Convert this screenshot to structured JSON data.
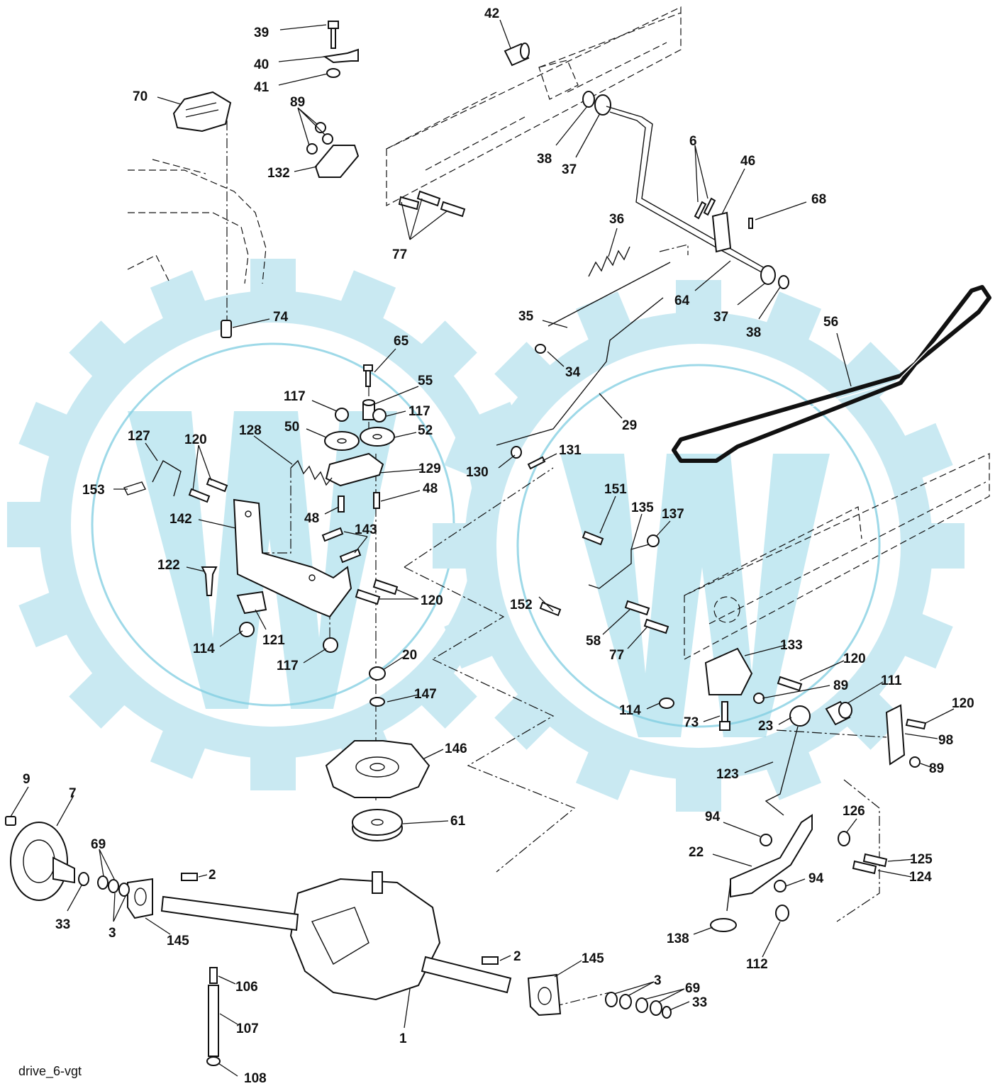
{
  "figure": {
    "caption": "drive_6-vgt"
  },
  "callouts": [
    {
      "id": "c39",
      "text": "39"
    },
    {
      "id": "c40",
      "text": "40"
    },
    {
      "id": "c41",
      "text": "41"
    },
    {
      "id": "c42",
      "text": "42"
    },
    {
      "id": "c70",
      "text": "70"
    },
    {
      "id": "c89a",
      "text": "89"
    },
    {
      "id": "c132",
      "text": "132"
    },
    {
      "id": "c77a",
      "text": "77"
    },
    {
      "id": "c38a",
      "text": "38"
    },
    {
      "id": "c37a",
      "text": "37"
    },
    {
      "id": "c6",
      "text": "6"
    },
    {
      "id": "c46",
      "text": "46"
    },
    {
      "id": "c68",
      "text": "68"
    },
    {
      "id": "c36",
      "text": "36"
    },
    {
      "id": "c64",
      "text": "64"
    },
    {
      "id": "c37b",
      "text": "37"
    },
    {
      "id": "c38b",
      "text": "38"
    },
    {
      "id": "c74",
      "text": "74"
    },
    {
      "id": "c35",
      "text": "35"
    },
    {
      "id": "c56",
      "text": "56"
    },
    {
      "id": "c65",
      "text": "65"
    },
    {
      "id": "c34",
      "text": "34"
    },
    {
      "id": "c55",
      "text": "55"
    },
    {
      "id": "c117a",
      "text": "117"
    },
    {
      "id": "c117b",
      "text": "117"
    },
    {
      "id": "c50",
      "text": "50"
    },
    {
      "id": "c52",
      "text": "52"
    },
    {
      "id": "c29",
      "text": "29"
    },
    {
      "id": "c127",
      "text": "127"
    },
    {
      "id": "c120a",
      "text": "120"
    },
    {
      "id": "c128",
      "text": "128"
    },
    {
      "id": "c129",
      "text": "129"
    },
    {
      "id": "c131",
      "text": "131"
    },
    {
      "id": "c130",
      "text": "130"
    },
    {
      "id": "c153",
      "text": "153"
    },
    {
      "id": "c48a",
      "text": "48"
    },
    {
      "id": "c48b",
      "text": "48"
    },
    {
      "id": "c151",
      "text": "151"
    },
    {
      "id": "c142",
      "text": "142"
    },
    {
      "id": "c135",
      "text": "135"
    },
    {
      "id": "c137",
      "text": "137"
    },
    {
      "id": "c143",
      "text": "143"
    },
    {
      "id": "c122",
      "text": "122"
    },
    {
      "id": "c120b",
      "text": "120"
    },
    {
      "id": "c152",
      "text": "152"
    },
    {
      "id": "c121",
      "text": "121"
    },
    {
      "id": "c114a",
      "text": "114"
    },
    {
      "id": "c117c",
      "text": "117"
    },
    {
      "id": "c58",
      "text": "58"
    },
    {
      "id": "c77b",
      "text": "77"
    },
    {
      "id": "c133",
      "text": "133"
    },
    {
      "id": "c20",
      "text": "20"
    },
    {
      "id": "c120c",
      "text": "120"
    },
    {
      "id": "c89b",
      "text": "89"
    },
    {
      "id": "c147",
      "text": "147"
    },
    {
      "id": "c111",
      "text": "111"
    },
    {
      "id": "c114b",
      "text": "114"
    },
    {
      "id": "c120d",
      "text": "120"
    },
    {
      "id": "c73",
      "text": "73"
    },
    {
      "id": "c23",
      "text": "23"
    },
    {
      "id": "c98",
      "text": "98"
    },
    {
      "id": "c146",
      "text": "146"
    },
    {
      "id": "c89c",
      "text": "89"
    },
    {
      "id": "c123",
      "text": "123"
    },
    {
      "id": "c9",
      "text": "9"
    },
    {
      "id": "c7",
      "text": "7"
    },
    {
      "id": "c61",
      "text": "61"
    },
    {
      "id": "c94a",
      "text": "94"
    },
    {
      "id": "c126",
      "text": "126"
    },
    {
      "id": "c69a",
      "text": "69"
    },
    {
      "id": "c22",
      "text": "22"
    },
    {
      "id": "c125",
      "text": "125"
    },
    {
      "id": "c2a",
      "text": "2"
    },
    {
      "id": "c124",
      "text": "124"
    },
    {
      "id": "c94b",
      "text": "94"
    },
    {
      "id": "c33a",
      "text": "33"
    },
    {
      "id": "c3a",
      "text": "3"
    },
    {
      "id": "c145a",
      "text": "145"
    },
    {
      "id": "c138",
      "text": "138"
    },
    {
      "id": "c112",
      "text": "112"
    },
    {
      "id": "c2b",
      "text": "2"
    },
    {
      "id": "c145b",
      "text": "145"
    },
    {
      "id": "c106",
      "text": "106"
    },
    {
      "id": "c3b",
      "text": "3"
    },
    {
      "id": "c69b",
      "text": "69"
    },
    {
      "id": "c33b",
      "text": "33"
    },
    {
      "id": "c107",
      "text": "107"
    },
    {
      "id": "c1",
      "text": "1"
    },
    {
      "id": "c108",
      "text": "108"
    }
  ]
}
